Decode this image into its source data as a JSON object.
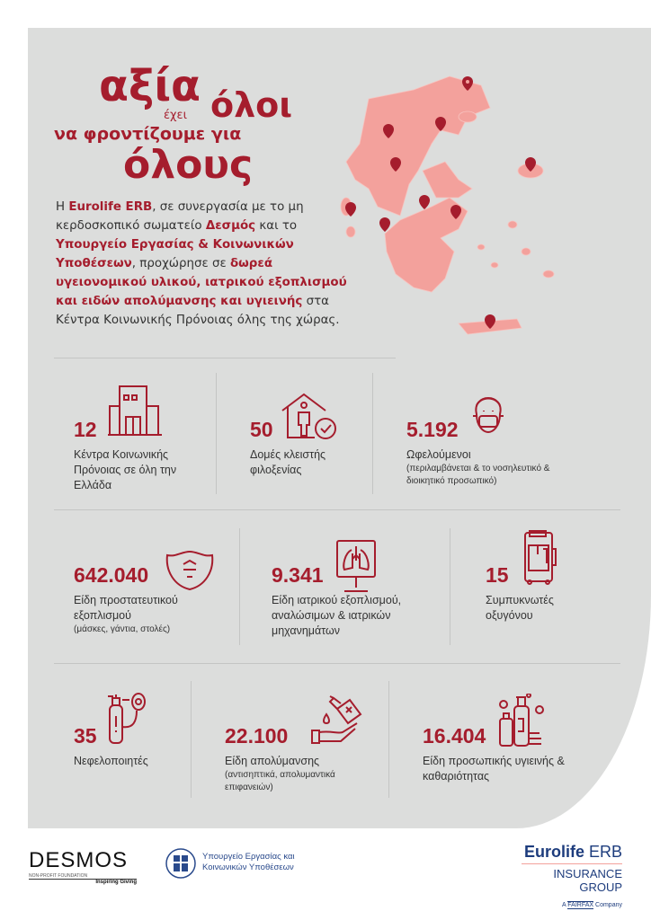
{
  "headline": {
    "line1": "αξία",
    "line2_small": "έχει",
    "line2": "όλοι",
    "line3": "να φροντίζουμε για",
    "line4": "όλους"
  },
  "intro": {
    "p1": "Η ",
    "b1": "Eurolife ERB",
    "p2": ", σε συνεργασία με το μη κερδοσκοπικό σωματείο ",
    "b2": "Δεσμός",
    "p3": " και το ",
    "b3": "Υπουργείο Εργασίας & Κοινωνικών Υποθέσεων",
    "p4": ", προχώρησε σε ",
    "b4": "δωρεά υγειονομικού υλικού, ιατρικού εξοπλισμού και ειδών απολύμανσης και υγιεινής",
    "p5": " στα Κέντρα Κοινωνικής Πρόνοιας όλης της χώρας."
  },
  "stats": [
    {
      "value": "12",
      "label": "Κέντρα Κοινωνικής Πρόνοιας σε όλη την Ελλάδα",
      "sub": "",
      "icon": "building-icon"
    },
    {
      "value": "50",
      "label": "Δομές κλειστής φιλοξενίας",
      "sub": "",
      "icon": "house-person-check-icon"
    },
    {
      "value": "5.192",
      "label": "Ωφελούμενοι",
      "sub": "(περιλαμβάνεται & το νοσηλευτικό & διοικητικό προσωπικό)",
      "icon": "person-mask-icon"
    },
    {
      "value": "642.040",
      "label": "Είδη προστατευτικού εξοπλισμού",
      "sub": "(μάσκες, γάντια, στολές)",
      "icon": "face-mask-icon"
    },
    {
      "value": "9.341",
      "label": "Είδη ιατρικού εξοπλισμού, αναλώσιμων & ιατρικών μηχανημάτων",
      "sub": "",
      "icon": "lungs-monitor-icon"
    },
    {
      "value": "15",
      "label": "Συμπυκνωτές οξυγόνου",
      "sub": "",
      "icon": "oxygen-concentrator-icon"
    },
    {
      "value": "35",
      "label": "Νεφελοποιητές",
      "sub": "",
      "icon": "nebulizer-icon"
    },
    {
      "value": "22.100",
      "label": "Είδη απολύμανσης",
      "sub": "(αντισηπτικά, απολυμαντικά επιφανειών)",
      "icon": "sanitizer-hand-icon"
    },
    {
      "value": "16.404",
      "label": "Είδη προσωπικής υγιεινής & καθαριότητας",
      "sub": "",
      "icon": "hygiene-bottles-icon"
    }
  ],
  "colors": {
    "accent": "#a51d2d",
    "map": "#f3a19c",
    "panel": "#dcdddc"
  },
  "footer": {
    "desmos": {
      "name": "DESMOS",
      "tagline": "NON-PROFIT FOUNDATION",
      "slogan": "Inspiring Giving"
    },
    "ministry": {
      "line1": "Υπουργείο Εργασίας και",
      "line2": "Κοινωνικών Υποθέσεων"
    },
    "eurolife": {
      "brand1": "Eurolife",
      "brand2": "ERB",
      "group": "INSURANCE GROUP",
      "fairfax_pre": "A",
      "fairfax": "FAIRFAX",
      "fairfax_post": "Company"
    }
  }
}
